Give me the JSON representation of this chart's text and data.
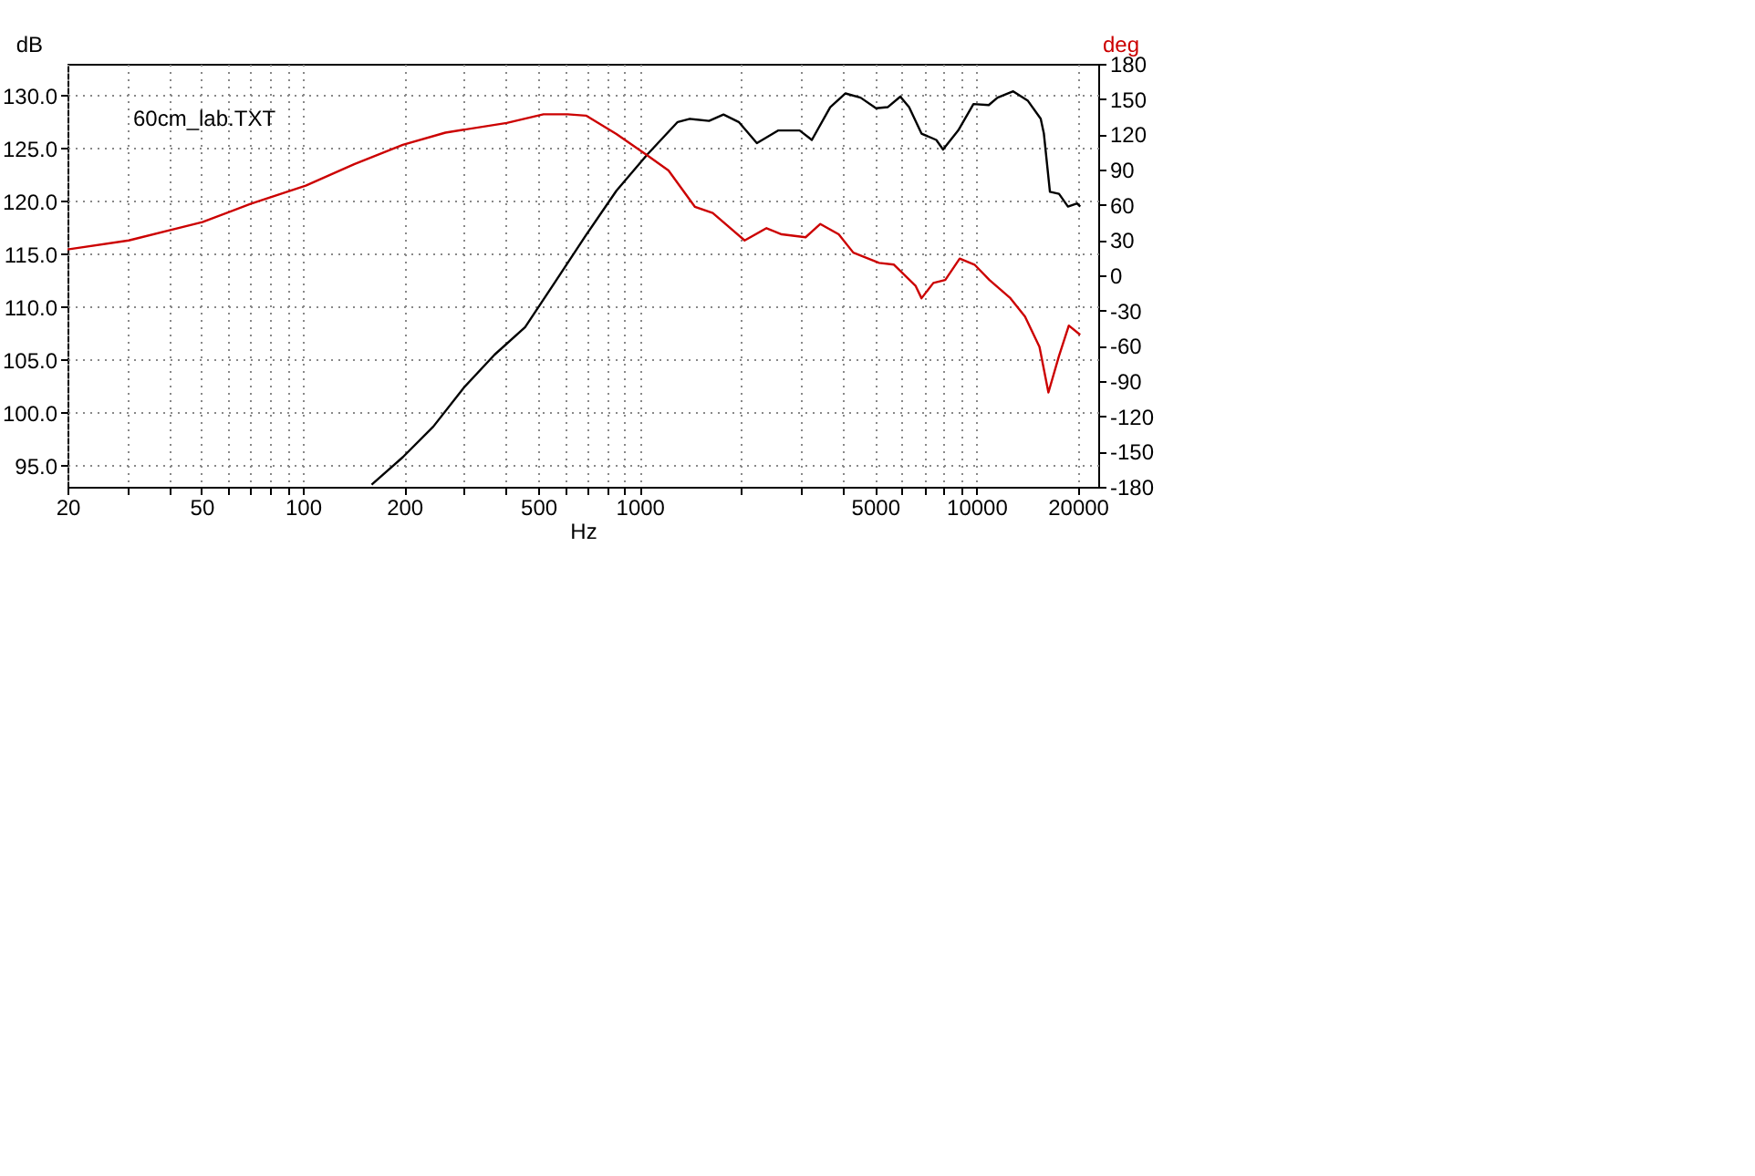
{
  "chart_data": {
    "type": "line",
    "xlabel": "Hz",
    "ylabel": "dB",
    "y2label": "deg",
    "log": "x",
    "grid": true,
    "line_style": "solid",
    "marker": "none",
    "annotations": [
      "60cm_lab.TXT"
    ],
    "xlim": [
      20,
      23000
    ],
    "xticks": [
      20,
      {
        "value": 30,
        "label": null
      },
      {
        "value": 40,
        "label": null
      },
      50,
      {
        "value": 60,
        "label": null
      },
      {
        "value": 70,
        "label": null
      },
      {
        "value": 80,
        "label": null
      },
      {
        "value": 90,
        "label": null
      },
      100,
      200,
      {
        "value": 300,
        "label": null
      },
      {
        "value": 400,
        "label": null
      },
      500,
      {
        "value": 600,
        "label": null
      },
      {
        "value": 700,
        "label": null
      },
      {
        "value": 800,
        "label": null
      },
      {
        "value": 900,
        "label": null
      },
      1000,
      {
        "value": 2000,
        "label": null
      },
      {
        "value": 3000,
        "label": null
      },
      {
        "value": 4000,
        "label": null
      },
      5000,
      {
        "value": 6000,
        "label": null
      },
      {
        "value": 7000,
        "label": null
      },
      {
        "value": 8000,
        "label": null
      },
      {
        "value": 9000,
        "label": null
      },
      10000,
      20000
    ],
    "ylim": [
      93,
      133
    ],
    "yticks": [
      {
        "value": 95,
        "label": "95.0"
      },
      {
        "value": 100,
        "label": "100.0"
      },
      {
        "value": 105,
        "label": "105.0"
      },
      {
        "value": 110,
        "label": "110.0"
      },
      {
        "value": 115,
        "label": "115.0"
      },
      {
        "value": 120,
        "label": "120.0"
      },
      {
        "value": 125,
        "label": "125.0"
      },
      {
        "value": 130,
        "label": "130.0"
      }
    ],
    "y2lim": [
      -180,
      180
    ],
    "y2ticks": [
      -180,
      -150,
      -120,
      -90,
      -60,
      -30,
      0,
      30,
      60,
      90,
      120,
      150,
      180
    ],
    "series": [
      {
        "color": "#000000",
        "x": [
          160,
          198,
          244,
          301,
          371,
          457,
          562,
          693,
          853,
          1052,
          1297,
          1409,
          1607,
          1774,
          1969,
          2229,
          2582,
          2986,
          3246,
          3680,
          4085,
          4530,
          5035,
          5450,
          5943,
          6310,
          6870,
          7600,
          7960,
          8830,
          9800,
          10880,
          11550,
          12860,
          14220,
          15520,
          15860,
          16530,
          17590,
          18700,
          19910,
          20330
        ],
        "values": [
          93.2,
          95.8,
          98.7,
          102.4,
          105.5,
          108.1,
          112.4,
          116.8,
          121.0,
          124.4,
          127.5,
          127.8,
          127.6,
          128.2,
          127.5,
          125.5,
          126.7,
          126.7,
          125.8,
          128.9,
          130.2,
          129.8,
          128.8,
          128.9,
          129.9,
          128.9,
          126.4,
          125.8,
          124.9,
          126.7,
          129.2,
          129.1,
          129.8,
          130.4,
          129.5,
          127.8,
          126.4,
          120.9,
          120.7,
          119.5,
          119.8,
          119.5
        ]
      },
      {
        "color": "#cc0000",
        "axis": "y2",
        "x": [
          20,
          30.4,
          50.3,
          69.9,
          102,
          142,
          198,
          265,
          403,
          518,
          562,
          611,
          693,
          853,
          1052,
          1218,
          1460,
          1648,
          2050,
          2380,
          2640,
          3110,
          3440,
          3900,
          4310,
          5140,
          5690,
          6600,
          6870,
          7450,
          8080,
          8920,
          9870,
          10930,
          12620,
          13940,
          15390,
          16360,
          17590,
          18810,
          20330
        ],
        "values": [
          22,
          29.7,
          45.3,
          60.8,
          76.4,
          94.5,
          111,
          121.4,
          129.7,
          137,
          137,
          137,
          135.9,
          120.3,
          102.3,
          89.2,
          58.2,
          53,
          29.7,
          40.1,
          34.9,
          32.4,
          43.7,
          34.9,
          19.3,
          10.6,
          9.1,
          -9.1,
          -19.5,
          -6.5,
          -4,
          14.2,
          9.1,
          -4,
          -19.5,
          -35.1,
          -60.9,
          -99.7,
          -68.6,
          -42.8,
          -50.6
        ]
      }
    ]
  }
}
